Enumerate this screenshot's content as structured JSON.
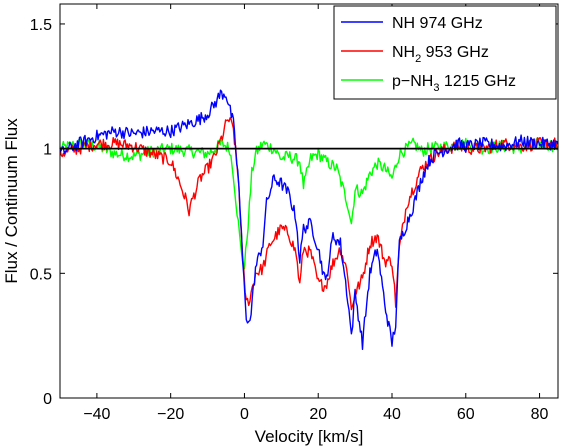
{
  "chart_data": {
    "type": "line",
    "title": "",
    "xlabel": "Velocity [km/s]",
    "ylabel": "Flux / Continuum Flux",
    "xlim": [
      -50,
      85
    ],
    "ylim": [
      0,
      1.58
    ],
    "xticks": [
      -40,
      -20,
      0,
      20,
      40,
      60,
      80
    ],
    "xtick_labels": [
      "−40",
      "−20",
      "0",
      "20",
      "40",
      "60",
      "80"
    ],
    "yticks": [
      0,
      0.5,
      1,
      1.5
    ],
    "ytick_labels": [
      "0",
      "0.5",
      "1",
      "1.5"
    ],
    "grid": false,
    "legend_position": "top-right",
    "reference_line": {
      "y": 1,
      "color": "#000000"
    },
    "series": [
      {
        "name": "NH 974 GHz",
        "label_parts": {
          "main": "NH 974 GHz",
          "sub": "",
          "rest": ""
        },
        "color": "#0000ff",
        "x": [
          -50,
          -45,
          -40,
          -35,
          -30,
          -25,
          -20,
          -15,
          -12,
          -10,
          -8,
          -6.5,
          -5,
          -3,
          -1.5,
          -0.5,
          0.5,
          1.5,
          3,
          5,
          6,
          8,
          10,
          12,
          14,
          15,
          16,
          18,
          20,
          22,
          24,
          26,
          28,
          29,
          30,
          32,
          34,
          36,
          38,
          40,
          41,
          42,
          44,
          46,
          48,
          50,
          52,
          55,
          58,
          60,
          65,
          70,
          75,
          80,
          85
        ],
        "y": [
          0.98,
          1.02,
          1.05,
          1.07,
          1.06,
          1.07,
          1.07,
          1.1,
          1.12,
          1.14,
          1.18,
          1.22,
          1.22,
          1.1,
          0.85,
          0.55,
          0.33,
          0.3,
          0.52,
          0.62,
          0.78,
          0.88,
          0.86,
          0.82,
          0.72,
          0.55,
          0.68,
          0.7,
          0.6,
          0.46,
          0.65,
          0.62,
          0.4,
          0.25,
          0.42,
          0.22,
          0.5,
          0.6,
          0.38,
          0.22,
          0.3,
          0.62,
          0.7,
          0.78,
          0.88,
          0.95,
          0.98,
          1.0,
          1.02,
          1.01,
          1.02,
          1.01,
          1.03,
          1.02,
          1.02
        ]
      },
      {
        "name": "NH2 953 GHz",
        "label_parts": {
          "main": "NH",
          "sub": "2",
          "rest": " 953 GHz"
        },
        "color": "#ff0000",
        "x": [
          -50,
          -45,
          -40,
          -35,
          -30,
          -25,
          -20,
          -18,
          -16,
          -15,
          -14,
          -12,
          -10,
          -8,
          -6,
          -4.5,
          -3,
          -1.5,
          -0.5,
          0.5,
          1.5,
          3,
          5,
          7,
          10,
          12,
          14,
          15,
          16,
          18,
          20,
          22,
          24,
          26,
          28,
          29,
          30,
          32,
          34,
          36,
          38,
          40,
          41,
          42,
          44,
          46,
          48,
          50,
          52,
          55,
          58,
          60,
          65,
          70,
          75,
          80,
          85
        ],
        "y": [
          0.98,
          1.0,
          1.02,
          1.02,
          1.01,
          0.98,
          0.95,
          0.88,
          0.8,
          0.75,
          0.8,
          0.88,
          0.92,
          0.97,
          1.05,
          1.12,
          1.08,
          0.85,
          0.55,
          0.38,
          0.4,
          0.5,
          0.52,
          0.62,
          0.68,
          0.66,
          0.58,
          0.45,
          0.6,
          0.58,
          0.46,
          0.45,
          0.54,
          0.6,
          0.5,
          0.35,
          0.42,
          0.48,
          0.62,
          0.65,
          0.55,
          0.55,
          0.38,
          0.6,
          0.78,
          0.85,
          0.92,
          0.95,
          0.98,
          1.0,
          1.01,
          1.0,
          1.0,
          1.02,
          1.01,
          1.02,
          1.02
        ]
      },
      {
        "name": "p-NH3 1215 GHz",
        "label_parts": {
          "main": "p−NH",
          "sub": "3",
          "rest": " 1215 GHz"
        },
        "color": "#00ff00",
        "x": [
          -50,
          -45,
          -40,
          -35,
          -30,
          -25,
          -20,
          -15,
          -10,
          -8,
          -6,
          -4,
          -3,
          -2,
          -1,
          0,
          1,
          2,
          3,
          5,
          8,
          10,
          12,
          15,
          16,
          18,
          20,
          22,
          25,
          28,
          29,
          30,
          32,
          34,
          36,
          38,
          40,
          42,
          44,
          46,
          48,
          50,
          55,
          60,
          65,
          70,
          75,
          80,
          85
        ],
        "y": [
          1.0,
          1.02,
          1.01,
          0.98,
          0.97,
          0.99,
          1.0,
          0.99,
          0.98,
          1.0,
          1.02,
          1.0,
          0.9,
          0.75,
          0.6,
          0.52,
          0.7,
          0.9,
          0.98,
          1.02,
          1.0,
          0.96,
          0.97,
          0.95,
          0.85,
          0.96,
          0.98,
          0.95,
          0.92,
          0.78,
          0.7,
          0.84,
          0.82,
          0.9,
          0.94,
          0.92,
          0.88,
          0.98,
          1.0,
          1.02,
          0.99,
          1.0,
          1.01,
          1.02,
          1.0,
          1.01,
          1.0,
          1.02,
          1.01
        ]
      }
    ]
  }
}
